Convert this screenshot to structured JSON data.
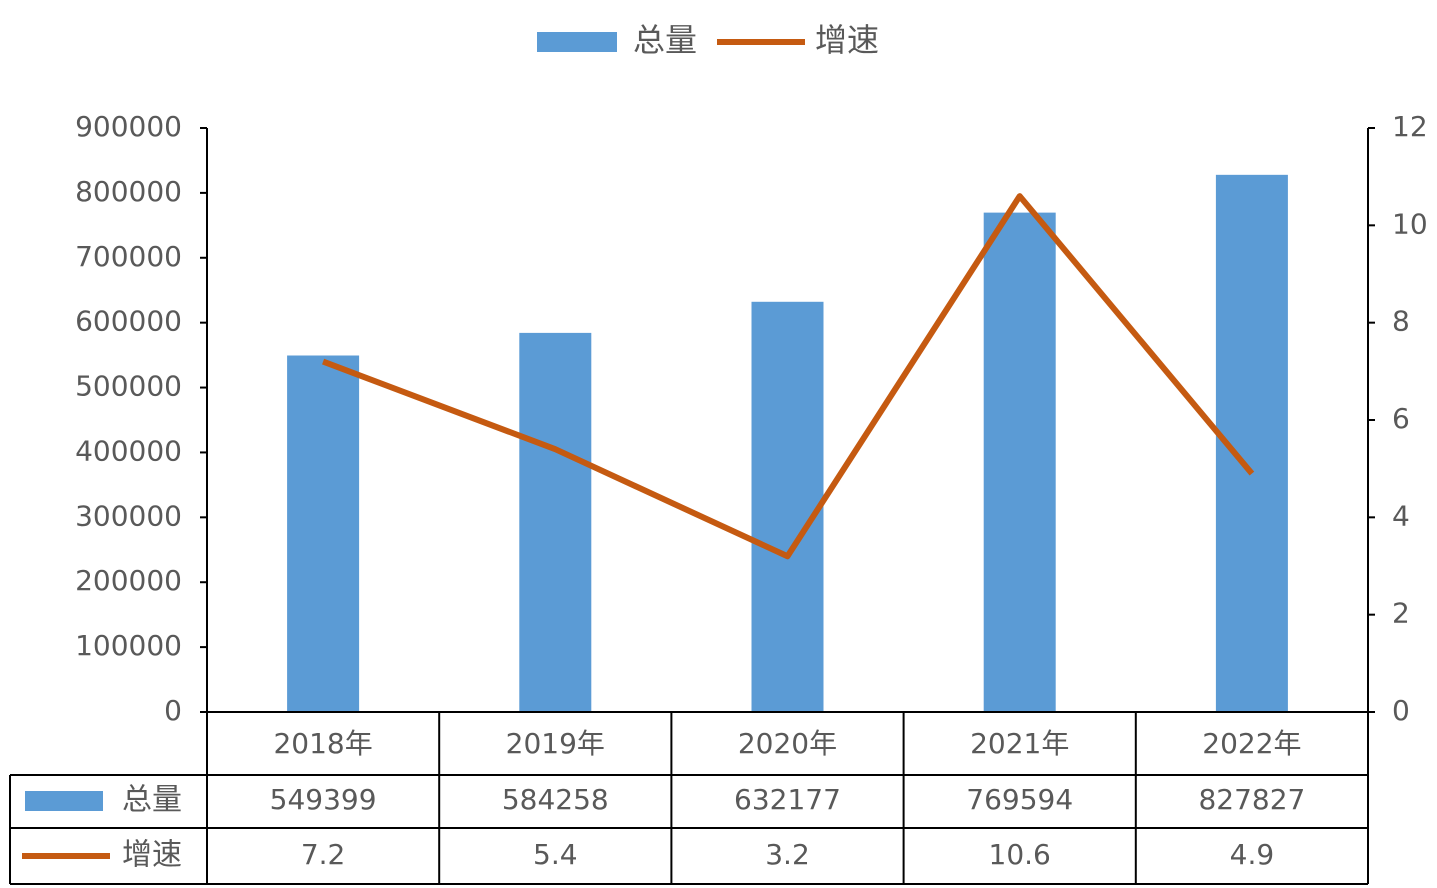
{
  "chart_data": {
    "type": "bar",
    "categories": [
      "2018年",
      "2019年",
      "2020年",
      "2021年",
      "2022年"
    ],
    "series": [
      {
        "name": "总量",
        "type": "bar",
        "color": "#5b9bd5",
        "values": [
          549399,
          584258,
          632177,
          769594,
          827827
        ]
      },
      {
        "name": "增速",
        "type": "line",
        "axis": "y2",
        "color": "#c55a11",
        "values": [
          7.2,
          5.4,
          3.2,
          10.6,
          4.9
        ]
      }
    ],
    "ylim": [
      0,
      900000
    ],
    "yticks": [
      0,
      100000,
      200000,
      300000,
      400000,
      500000,
      600000,
      700000,
      800000,
      900000
    ],
    "y2lim": [
      0,
      12
    ],
    "y2ticks": [
      0,
      2,
      4,
      6,
      8,
      10,
      12
    ],
    "legend": "top",
    "data_table": true
  }
}
